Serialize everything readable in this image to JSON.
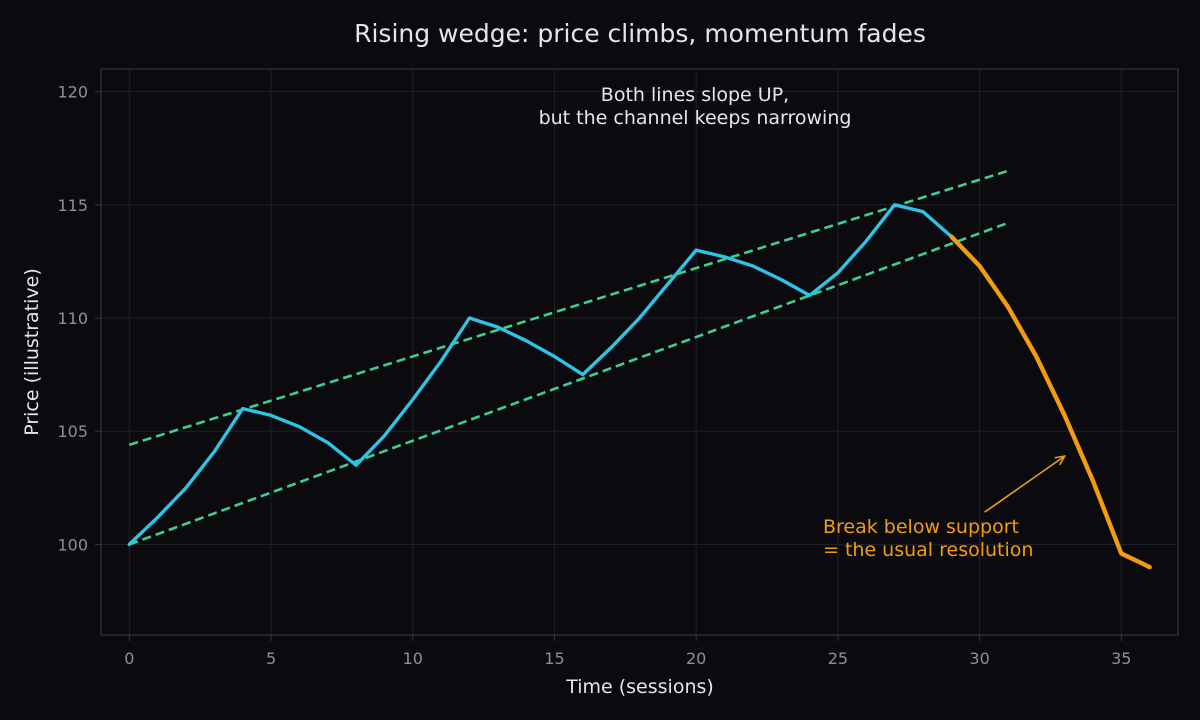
{
  "chart_data": {
    "type": "line",
    "title": "Rising wedge: price climbs, momentum fades",
    "xlabel": "Time (sessions)",
    "ylabel": "Price (illustrative)",
    "xlim": [
      -1,
      37
    ],
    "ylim": [
      96,
      121
    ],
    "x_ticks": [
      0,
      5,
      10,
      15,
      20,
      25,
      30,
      35
    ],
    "y_ticks": [
      100,
      105,
      110,
      115,
      120
    ],
    "grid": true,
    "series": [
      {
        "color": "#2ec4e6",
        "points": [
          [
            0,
            100
          ],
          [
            1,
            101.2
          ],
          [
            2,
            102.5
          ],
          [
            3,
            104.1
          ],
          [
            4,
            106
          ],
          [
            5,
            105.7
          ],
          [
            6,
            105.2
          ],
          [
            7,
            104.5
          ],
          [
            8,
            103.5
          ],
          [
            9,
            104.8
          ],
          [
            10,
            106.4
          ],
          [
            11,
            108.1
          ],
          [
            12,
            110
          ],
          [
            13,
            109.6
          ],
          [
            14,
            109
          ],
          [
            15,
            108.3
          ],
          [
            16,
            107.5
          ],
          [
            17,
            108.7
          ],
          [
            18,
            110
          ],
          [
            19,
            111.5
          ],
          [
            20,
            113
          ],
          [
            21,
            112.7
          ],
          [
            22,
            112.3
          ],
          [
            23,
            111.7
          ],
          [
            24,
            111
          ],
          [
            25,
            112
          ],
          [
            26,
            113.4
          ],
          [
            27,
            115
          ],
          [
            28,
            114.7
          ],
          [
            29,
            113.6
          ]
        ]
      },
      {
        "color": "#f39c12",
        "points": [
          [
            29,
            113.6
          ],
          [
            30,
            112.3
          ],
          [
            31,
            110.5
          ],
          [
            32,
            108.3
          ],
          [
            33,
            105.7
          ],
          [
            34,
            102.8
          ],
          [
            35,
            99.6
          ],
          [
            36,
            99
          ]
        ]
      }
    ],
    "trendlines": [
      {
        "role": "resistance",
        "color": "#3ecf8e",
        "from": [
          0,
          104.4
        ],
        "to": [
          31,
          116.5
        ]
      },
      {
        "role": "support",
        "color": "#3ecf8e",
        "from": [
          0,
          100
        ],
        "to": [
          31,
          114.2
        ]
      }
    ],
    "annotations": {
      "note_lines": [
        "Both lines slope UP,",
        "but the channel keeps narrowing"
      ],
      "break_lines": [
        "Break below support",
        "= the usual resolution"
      ],
      "arrow_target": [
        33,
        103.9
      ]
    }
  },
  "colors": {
    "background": "#0b0b0f",
    "grid": "#1c2128",
    "axis": "#2f3540",
    "price_line": "#2ec4e6",
    "breakdown_line": "#f39c12",
    "trendline": "#3ecf8e"
  }
}
